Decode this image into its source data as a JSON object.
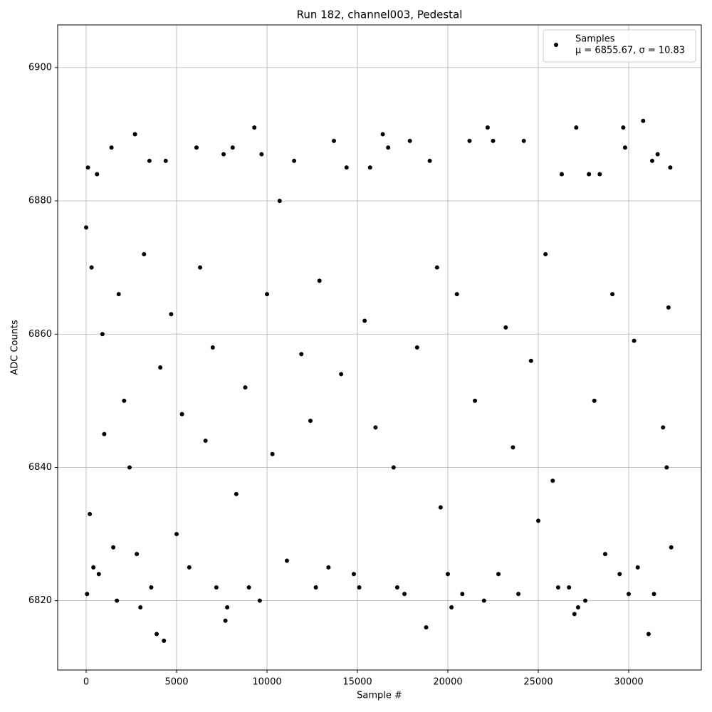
{
  "chart_data": {
    "type": "scatter",
    "title": "Run 182, channel003, Pedestal",
    "x_label": "Sample #",
    "y_label": "ADC Counts",
    "xlim": [
      -1575,
      34016
    ],
    "ylim": [
      6809.6,
      6906.4
    ],
    "xticks": [
      0,
      5000,
      10000,
      15000,
      20000,
      25000,
      30000
    ],
    "yticks": [
      6820,
      6840,
      6860,
      6880,
      6900
    ],
    "grid": true,
    "legend": "upper right",
    "annotation": "μ = 6855.67, σ = 10.83",
    "series": [
      {
        "name": "Samples",
        "color": "#000000",
        "x": [
          0,
          50,
          100,
          200,
          300,
          400,
          600,
          700,
          900,
          1000,
          1400,
          1500,
          1700,
          1800,
          2100,
          2400,
          2700,
          2800,
          3000,
          3200,
          3500,
          3600,
          3900,
          4100,
          4300,
          4400,
          4700,
          5000,
          5300,
          5700,
          6100,
          6300,
          6600,
          7000,
          7200,
          7600,
          7700,
          7800,
          8100,
          8300,
          8800,
          9000,
          9300,
          9600,
          9700,
          10000,
          10300,
          10700,
          11100,
          11500,
          11900,
          12400,
          12700,
          12900,
          13400,
          13700,
          14100,
          14400,
          14800,
          15100,
          15400,
          15700,
          16000,
          16400,
          16700,
          17000,
          17200,
          17600,
          17900,
          18300,
          18800,
          19000,
          19400,
          19600,
          20000,
          20200,
          20500,
          20800,
          21200,
          21500,
          22000,
          22200,
          22500,
          22800,
          23200,
          23600,
          23900,
          24200,
          24600,
          25000,
          25400,
          25800,
          26100,
          26300,
          26700,
          27000,
          27100,
          27200,
          27600,
          27800,
          28100,
          28400,
          28700,
          29100,
          29500,
          29700,
          29800,
          30000,
          30300,
          30500,
          30800,
          31100,
          31300,
          31400,
          31600,
          31900,
          32100,
          32300,
          32350,
          32200
        ],
        "values": [
          6876,
          6821,
          6885,
          6833,
          6870,
          6825,
          6884,
          6824,
          6860,
          6845,
          6888,
          6828,
          6820,
          6866,
          6850,
          6840,
          6890,
          6827,
          6819,
          6872,
          6886,
          6822,
          6815,
          6855,
          6814,
          6886,
          6863,
          6830,
          6848,
          6825,
          6888,
          6870,
          6844,
          6858,
          6822,
          6887,
          6817,
          6819,
          6888,
          6836,
          6852,
          6822,
          6891,
          6820,
          6887,
          6866,
          6842,
          6880,
          6826,
          6886,
          6857,
          6847,
          6822,
          6868,
          6825,
          6889,
          6854,
          6885,
          6824,
          6822,
          6862,
          6885,
          6846,
          6890,
          6888,
          6840,
          6822,
          6821,
          6889,
          6858,
          6816,
          6886,
          6870,
          6834,
          6824,
          6819,
          6866,
          6821,
          6889,
          6850,
          6820,
          6891,
          6889,
          6824,
          6861,
          6843,
          6821,
          6889,
          6856,
          6832,
          6872,
          6838,
          6822,
          6884,
          6822,
          6818,
          6891,
          6819,
          6820,
          6884,
          6850,
          6884,
          6827,
          6866,
          6824,
          6891,
          6888,
          6821,
          6859,
          6825,
          6892,
          6815,
          6886,
          6821,
          6887,
          6846,
          6840,
          6885,
          6828,
          6864
        ]
      }
    ]
  }
}
